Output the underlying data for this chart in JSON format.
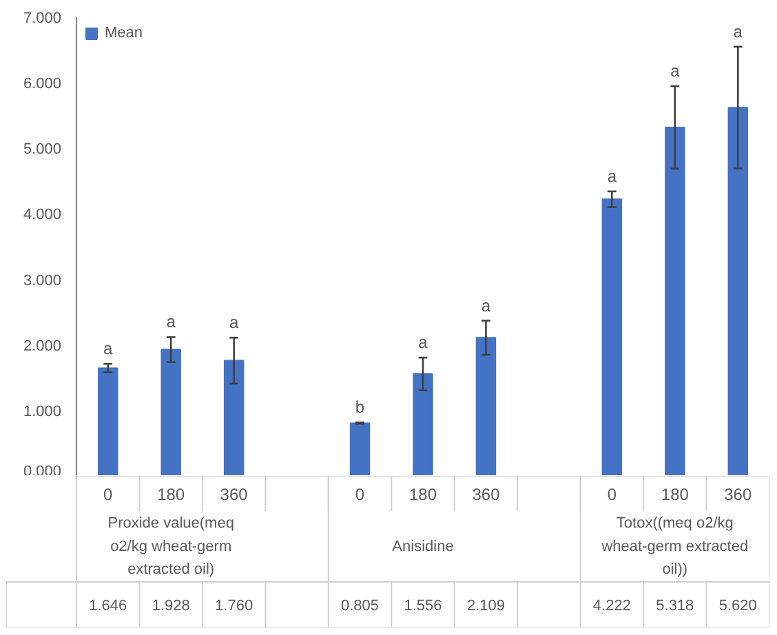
{
  "chart_data": {
    "type": "bar",
    "categories": [
      "0",
      "180",
      "360",
      null,
      "0",
      "180",
      "360",
      null,
      "0",
      "180",
      "360"
    ],
    "series": [
      {
        "name": "Mean",
        "color": "#4472c4",
        "values": [
          1.646,
          1.928,
          1.76,
          null,
          0.805,
          1.556,
          2.109,
          null,
          4.222,
          5.318,
          5.62
        ],
        "errors": [
          0.065,
          0.19,
          0.35,
          null,
          0.01,
          0.25,
          0.26,
          null,
          0.12,
          0.63,
          0.93
        ],
        "value_labels": [
          "1.646",
          "1.928",
          "1.760",
          null,
          "0.805",
          "1.556",
          "2.109",
          null,
          "4.222",
          "5.318",
          "5.620"
        ]
      }
    ],
    "annotations": [
      "a",
      "a",
      "a",
      "b",
      "a",
      "a",
      "a",
      "a",
      "a",
      "Proxide value(meq o2/kg wheat-germ extracted oil)",
      "Anisidine",
      "Totox((meq o2/kg wheat-germ extracted oil))"
    ],
    "ylim": [
      0,
      7
    ],
    "yticks": [
      {
        "value": 0,
        "label": "0.000"
      },
      {
        "value": 1,
        "label": "1.000"
      },
      {
        "value": 2,
        "label": "2.000"
      },
      {
        "value": 3,
        "label": "3.000"
      },
      {
        "value": 4,
        "label": "4.000"
      },
      {
        "value": 5,
        "label": "5.000"
      },
      {
        "value": 6,
        "label": "6.000"
      },
      {
        "value": 7,
        "label": "7.000"
      }
    ],
    "grid": false,
    "legend": "top left"
  }
}
